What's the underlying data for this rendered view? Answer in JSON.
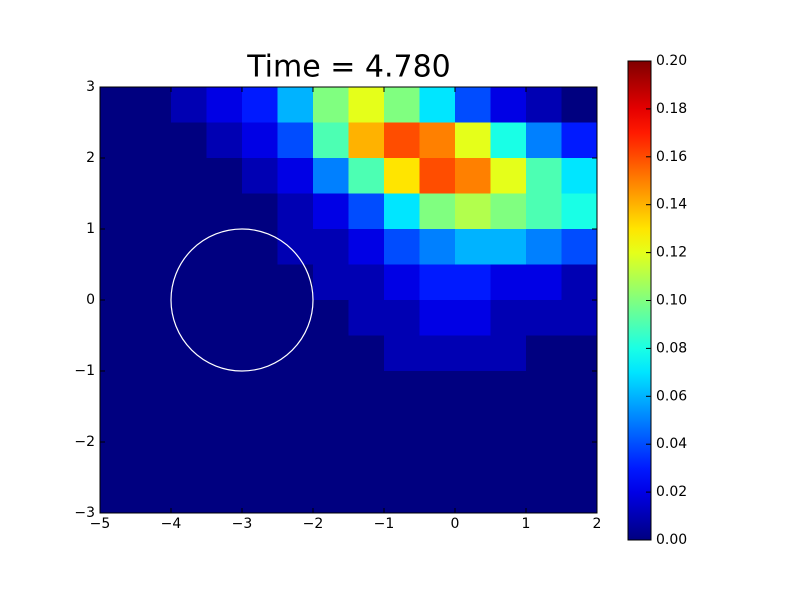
{
  "chart_data": {
    "type": "heatmap",
    "title": "Time = 4.780",
    "x": [
      -4.75,
      -4.25,
      -3.75,
      -3.25,
      -2.75,
      -2.25,
      -1.75,
      -1.25,
      -0.75,
      -0.25,
      0.25,
      0.75,
      1.25,
      1.75
    ],
    "y": [
      2.75,
      2.25,
      1.75,
      1.25,
      0.75,
      0.25,
      -0.25,
      -0.75,
      -1.25,
      -1.75,
      -2.25,
      -2.75
    ],
    "z": [
      [
        0,
        0,
        0.01,
        0.02,
        0.03,
        0.06,
        0.1,
        0.12,
        0.1,
        0.07,
        0.04,
        0.02,
        0.01,
        0
      ],
      [
        0,
        0,
        0,
        0.01,
        0.02,
        0.04,
        0.09,
        0.14,
        0.16,
        0.15,
        0.12,
        0.08,
        0.05,
        0.03
      ],
      [
        0,
        0,
        0,
        0,
        0.01,
        0.02,
        0.05,
        0.09,
        0.13,
        0.16,
        0.15,
        0.12,
        0.09,
        0.07
      ],
      [
        0,
        0,
        0,
        0,
        0,
        0.01,
        0.02,
        0.04,
        0.07,
        0.1,
        0.11,
        0.1,
        0.09,
        0.08
      ],
      [
        0,
        0,
        0,
        0,
        0,
        0.01,
        0.01,
        0.02,
        0.04,
        0.05,
        0.06,
        0.06,
        0.05,
        0.04
      ],
      [
        0,
        0,
        0,
        0,
        0,
        0,
        0.01,
        0.01,
        0.02,
        0.03,
        0.03,
        0.02,
        0.02,
        0.01
      ],
      [
        0,
        0,
        0,
        0,
        0,
        0,
        0,
        0.01,
        0.01,
        0.02,
        0.02,
        0.01,
        0.01,
        0.01
      ],
      [
        0,
        0,
        0,
        0,
        0,
        0,
        0,
        0,
        0.01,
        0.01,
        0.01,
        0.01,
        0,
        0
      ],
      [
        0,
        0,
        0,
        0,
        0,
        0,
        0,
        0,
        0,
        0,
        0,
        0,
        0,
        0
      ],
      [
        0,
        0,
        0,
        0,
        0,
        0,
        0,
        0,
        0,
        0,
        0,
        0,
        0,
        0
      ],
      [
        0,
        0,
        0,
        0,
        0,
        0,
        0,
        0,
        0,
        0,
        0,
        0,
        0,
        0
      ],
      [
        0,
        0,
        0,
        0,
        0,
        0,
        0,
        0,
        0,
        0,
        0,
        0,
        0,
        0
      ]
    ],
    "colormap": "jet",
    "xlim": [
      -5,
      2
    ],
    "ylim": [
      -3,
      3
    ],
    "zlim": [
      0,
      0.2
    ],
    "xticks": [
      {
        "value": -5,
        "label": "−5"
      },
      {
        "value": -4,
        "label": "−4"
      },
      {
        "value": -3,
        "label": "−3"
      },
      {
        "value": -2,
        "label": "−2"
      },
      {
        "value": -1,
        "label": "−1"
      },
      0,
      1,
      2
    ],
    "yticks": [
      {
        "value": -3,
        "label": "−3"
      },
      {
        "value": -2,
        "label": "−2"
      },
      {
        "value": -1,
        "label": "−1"
      },
      0,
      1,
      2,
      3
    ],
    "zticks": [
      {
        "value": 0,
        "label": "0.00"
      },
      {
        "value": 0.02,
        "label": "0.02"
      },
      {
        "value": 0.04,
        "label": "0.04"
      },
      {
        "value": 0.06,
        "label": "0.06"
      },
      {
        "value": 0.08,
        "label": "0.08"
      },
      {
        "value": 0.1,
        "label": "0.10"
      },
      {
        "value": 0.12,
        "label": "0.12"
      },
      {
        "value": 0.14,
        "label": "0.14"
      },
      {
        "value": 0.16,
        "label": "0.16"
      },
      {
        "value": 0.18,
        "label": "0.18"
      },
      {
        "value": 0.2,
        "label": "0.20"
      }
    ],
    "circle": {
      "center": [
        -3,
        0
      ],
      "radius": 1,
      "color": "#ffffff"
    }
  }
}
